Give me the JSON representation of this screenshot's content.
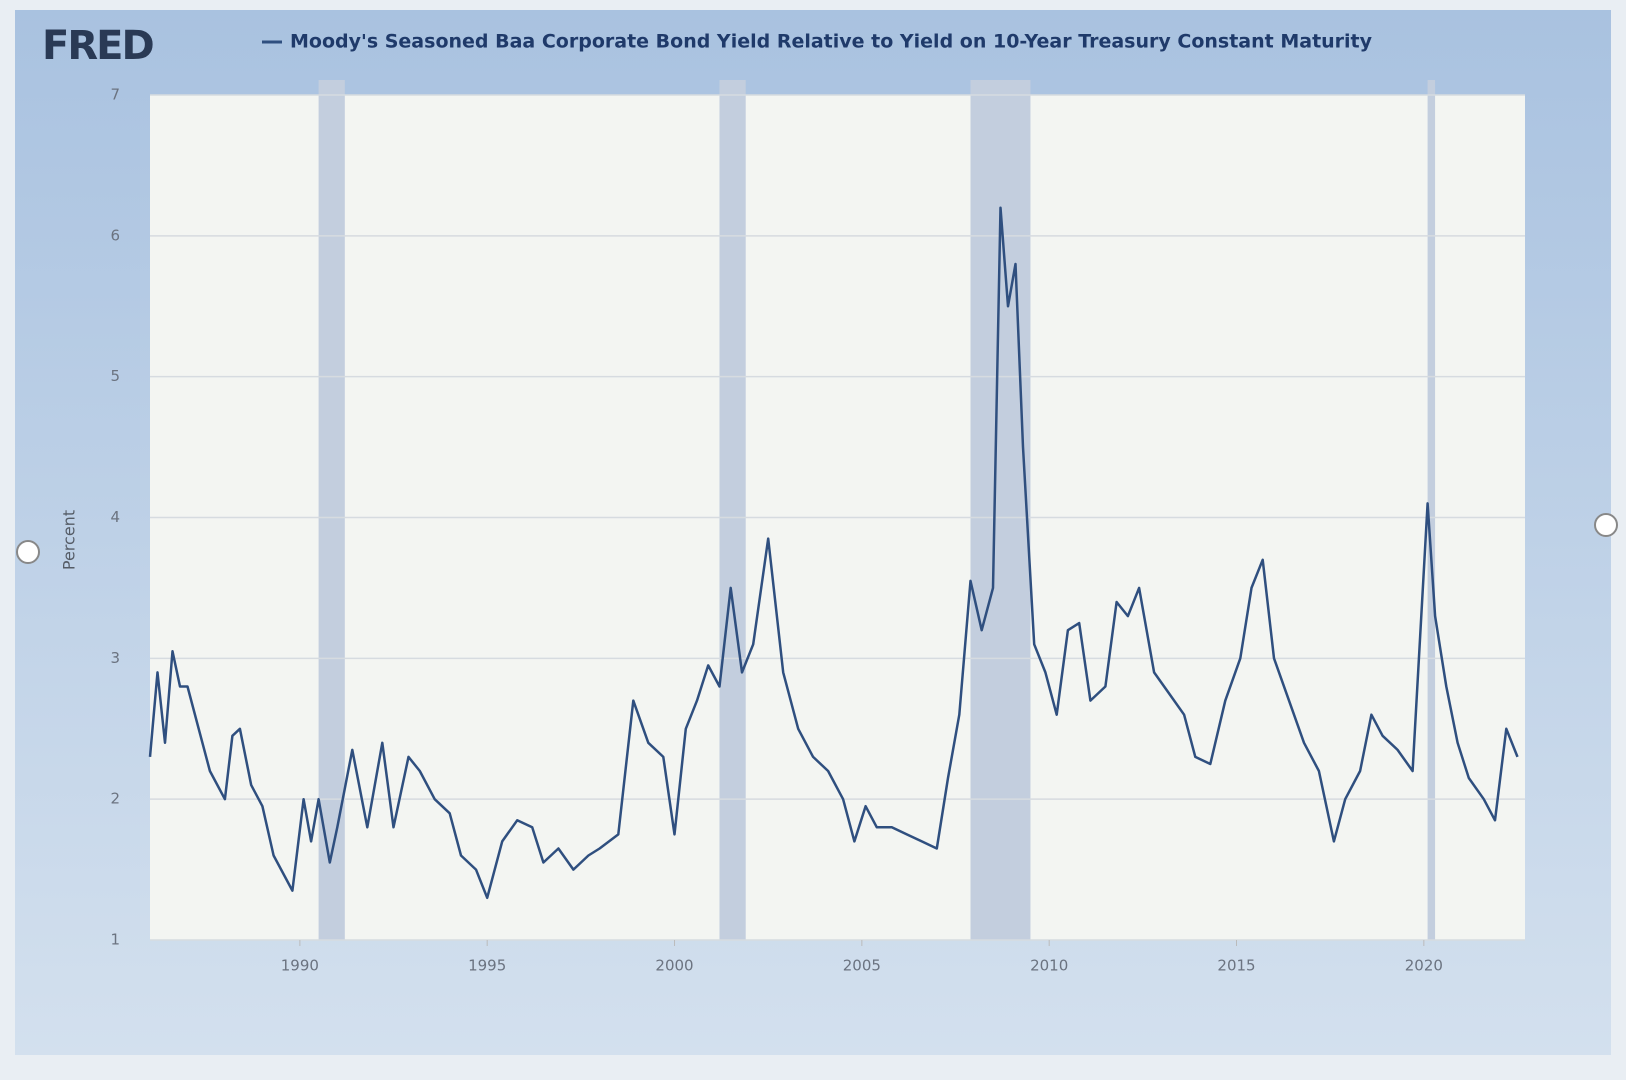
{
  "logo": "FRED",
  "chart_data": {
    "type": "line",
    "title": "Moody's Seasoned Baa Corporate Bond Yield Relative to Yield on 10-Year Treasury Constant Maturity",
    "ylabel": "Percent",
    "color": "#2f4f7f",
    "x": [
      1986.0,
      1986.2,
      1986.4,
      1986.6,
      1986.8,
      1987.0,
      1987.3,
      1987.6,
      1988.0,
      1988.2,
      1988.4,
      1988.7,
      1989.0,
      1989.3,
      1989.6,
      1989.8,
      1990.1,
      1990.3,
      1990.5,
      1990.8,
      1991.0,
      1991.4,
      1991.8,
      1992.2,
      1992.5,
      1992.9,
      1993.2,
      1993.6,
      1994.0,
      1994.3,
      1994.7,
      1995.0,
      1995.4,
      1995.8,
      1996.2,
      1996.5,
      1996.9,
      1997.3,
      1997.7,
      1998.0,
      1998.5,
      1998.9,
      1999.3,
      1999.7,
      2000.0,
      2000.3,
      2000.6,
      2000.9,
      2001.2,
      2001.5,
      2001.8,
      2002.1,
      2002.5,
      2002.9,
      2003.3,
      2003.7,
      2004.1,
      2004.5,
      2004.8,
      2005.1,
      2005.4,
      2005.8,
      2006.2,
      2006.6,
      2007.0,
      2007.3,
      2007.6,
      2007.9,
      2008.2,
      2008.5,
      2008.7,
      2008.9,
      2009.1,
      2009.3,
      2009.6,
      2009.9,
      2010.2,
      2010.5,
      2010.8,
      2011.1,
      2011.5,
      2011.8,
      2012.1,
      2012.4,
      2012.8,
      2013.2,
      2013.6,
      2013.9,
      2014.3,
      2014.7,
      2015.1,
      2015.4,
      2015.7,
      2016.0,
      2016.4,
      2016.8,
      2017.2,
      2017.6,
      2017.9,
      2018.3,
      2018.6,
      2018.9,
      2019.3,
      2019.7,
      2020.1,
      2020.3,
      2020.6,
      2020.9,
      2021.2,
      2021.6,
      2021.9,
      2022.2,
      2022.5
    ],
    "values": [
      2.3,
      2.9,
      2.4,
      3.05,
      2.8,
      2.8,
      2.5,
      2.2,
      2.0,
      2.45,
      2.5,
      2.1,
      1.95,
      1.6,
      1.45,
      1.35,
      2.0,
      1.7,
      2.0,
      1.55,
      1.8,
      2.35,
      1.8,
      2.4,
      1.8,
      2.3,
      2.2,
      2.0,
      1.9,
      1.6,
      1.5,
      1.3,
      1.7,
      1.85,
      1.8,
      1.55,
      1.65,
      1.5,
      1.6,
      1.65,
      1.75,
      2.7,
      2.4,
      2.3,
      1.75,
      2.5,
      2.7,
      2.95,
      2.8,
      3.5,
      2.9,
      3.1,
      3.85,
      2.9,
      2.5,
      2.3,
      2.2,
      2.0,
      1.7,
      1.95,
      1.8,
      1.8,
      1.75,
      1.7,
      1.65,
      2.15,
      2.6,
      3.55,
      3.2,
      3.5,
      6.2,
      5.5,
      5.8,
      4.5,
      3.1,
      2.9,
      2.6,
      3.2,
      3.25,
      2.7,
      2.8,
      3.4,
      3.3,
      3.5,
      2.9,
      2.75,
      2.6,
      2.3,
      2.25,
      2.7,
      3.0,
      3.5,
      3.7,
      3.0,
      2.7,
      2.4,
      2.2,
      1.7,
      2.0,
      2.2,
      2.6,
      2.45,
      2.35,
      2.2,
      4.1,
      3.3,
      2.8,
      2.4,
      2.15,
      2.0,
      1.85,
      2.5,
      2.3
    ],
    "recessions": [
      [
        1990.5,
        1991.2
      ],
      [
        2001.2,
        2001.9
      ],
      [
        2007.9,
        2009.5
      ],
      [
        2020.1,
        2020.3
      ]
    ],
    "xlim": [
      1986.0,
      2022.7
    ],
    "xticks": [
      1990,
      1995,
      2000,
      2005,
      2010,
      2015,
      2020
    ],
    "ylim": [
      1,
      7
    ],
    "yticks": [
      1,
      2,
      3,
      4,
      5,
      6,
      7
    ],
    "grid": true
  }
}
